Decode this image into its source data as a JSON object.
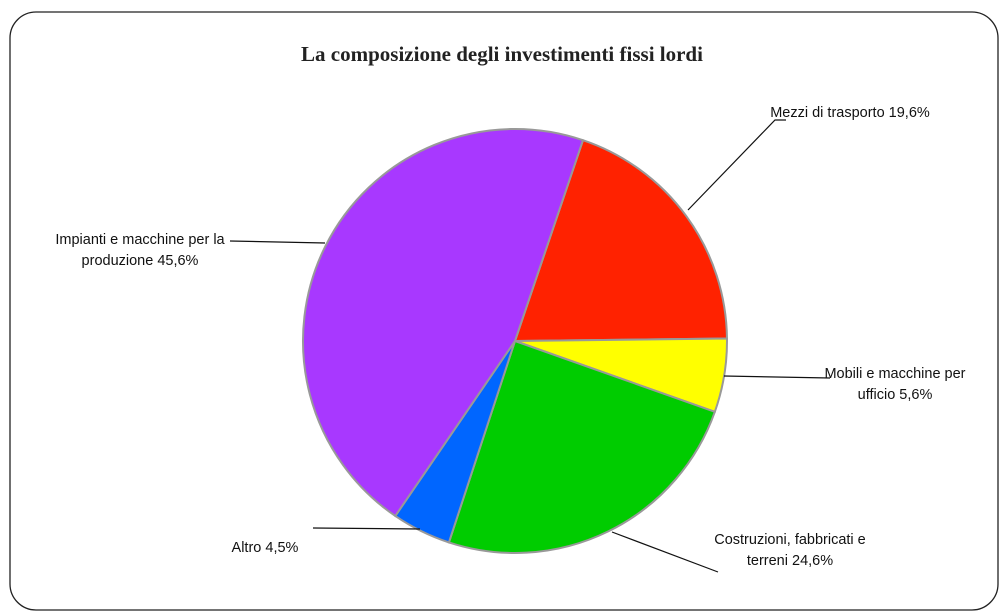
{
  "chart_data": {
    "type": "pie",
    "title": "La composizione degli investimenti fissi lordi",
    "categories": [
      "Mezzi di trasporto",
      "Mobili e macchine per ufficio",
      "Costruzioni, fabbricati e terreni",
      "Altro",
      "Impianti e macchine per la produzione"
    ],
    "values": [
      19.6,
      5.6,
      24.6,
      4.5,
      45.6
    ],
    "value_labels": [
      "19,6%",
      "5,6%",
      "24,6%",
      "4,5%",
      "45,6%"
    ],
    "colors": [
      "#ff2200",
      "#ffff00",
      "#00cc00",
      "#0066ff",
      "#a838ff"
    ]
  }
}
